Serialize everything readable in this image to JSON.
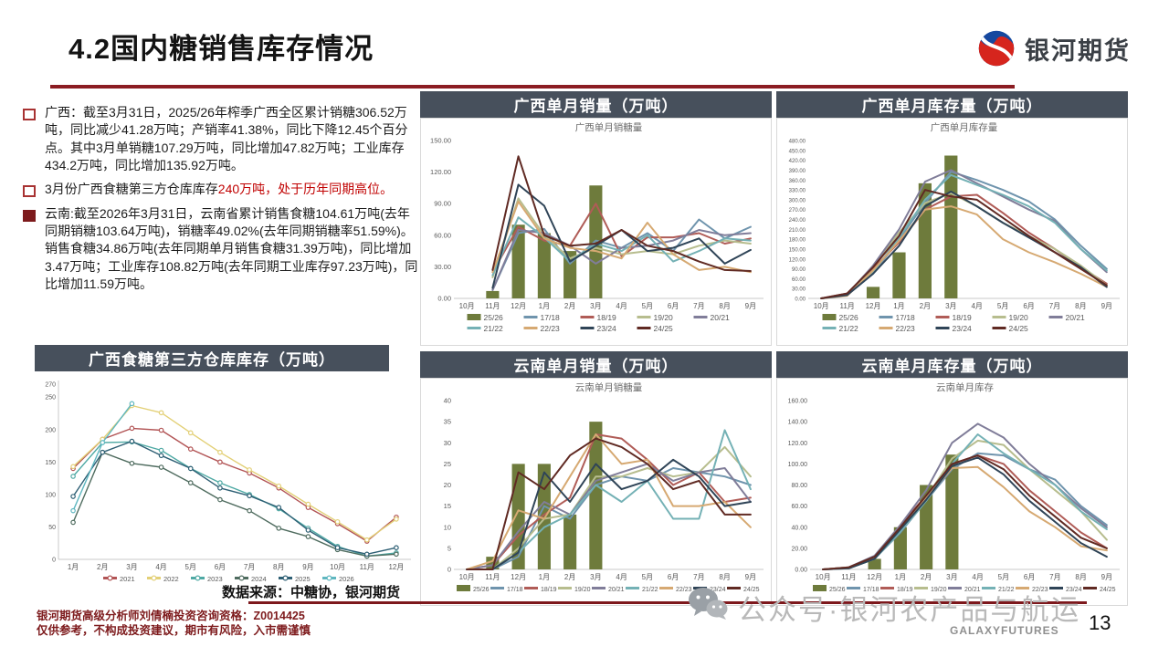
{
  "header": {
    "title": "4.2国内糖销售库存情况",
    "logo_text": "银河期货"
  },
  "colors": {
    "accent_red": "#8b1c22",
    "panel_header": "#47505c",
    "highlight_red": "#c00000",
    "season_colors": {
      "25/26": "#6e7b3c",
      "17/18": "#6f94ad",
      "18/19": "#b05c57",
      "19/20": "#b7bd8e",
      "20/21": "#807d99",
      "21/22": "#74b1b5",
      "22/23": "#d6a972",
      "23/24": "#2f4457",
      "24/25": "#602a23"
    },
    "year_colors": {
      "2021": "#b25455",
      "2022": "#e3d077",
      "2023": "#4fa9a4",
      "2024": "#4e6b5e",
      "2025": "#2e5f74",
      "2026": "#5fb7c0"
    }
  },
  "bullets": [
    {
      "marker": "hollow",
      "segments": [
        {
          "text": "广西：截至3月31日，2025/26年榨季广西全区累计销糖306.52万吨，同比减少41.28万吨；产销率41.38%，同比下降12.45个百分点。其中3月单销糖107.29万吨，同比增加47.82万吨；工业库存434.2万吨，同比增加135.92万吨。",
          "red": false
        }
      ]
    },
    {
      "marker": "hollow",
      "segments": [
        {
          "text": "3月份广西食糖第三方仓库库存",
          "red": false
        },
        {
          "text": "240万吨，处于历年同期高位。",
          "red": true
        }
      ]
    },
    {
      "marker": "solid",
      "segments": [
        {
          "text": "云南:截至2026年3月31日，云南省累计销售食糖104.61万吨(去年同期销糖103.64万吨)，销糖率49.02%(去年同期销糖率51.59%)。销售食糖34.86万吨(去年同期单月销售食糖31.39万吨)，同比增加3.47万吨；工业库存108.82万吨(去年同期工业库存97.23万吨)，同比增加11.59万吨。",
          "red": false
        }
      ]
    }
  ],
  "source_note": "数据来源：中糖协，银河期货",
  "footer": {
    "line1": "银河期货高级分析师刘倩楠投资咨询资格：Z0014425",
    "line2": "仅供参考，不构成投资建议，期市有风险，入市需谨慎"
  },
  "watermark": {
    "text": "公众号·银河农产品与航运",
    "brand": "GALAXYFUTURES",
    "page": "13"
  },
  "chart_data": [
    {
      "type": "combo-bar-line",
      "title": "广西单月销量（万吨）",
      "inner_title": "广西单月销糖量",
      "categories": [
        "10月",
        "11月",
        "12月",
        "1月",
        "2月",
        "3月",
        "4月",
        "5月",
        "6月",
        "7月",
        "8月",
        "9月"
      ],
      "ylim": [
        0,
        150
      ],
      "yticks": [
        0,
        30,
        60,
        90,
        120,
        150
      ],
      "ytick_decimals": 2,
      "legend_cols": 5,
      "series": [
        {
          "name": "25/26",
          "type": "bar",
          "color": "#6e7b3c",
          "values": [
            null,
            7,
            70,
            62,
            45,
            107.3,
            null,
            null,
            null,
            null,
            null,
            null
          ]
        },
        {
          "name": "17/18",
          "type": "line",
          "color": "#6f94ad",
          "values": [
            null,
            8,
            62,
            66,
            33,
            55,
            48,
            62,
            45,
            75,
            57,
            68
          ]
        },
        {
          "name": "18/19",
          "type": "line",
          "color": "#b05c57",
          "values": [
            null,
            25,
            68,
            55,
            50,
            90,
            40,
            58,
            58,
            62,
            52,
            57
          ]
        },
        {
          "name": "19/20",
          "type": "line",
          "color": "#b7bd8e",
          "values": [
            null,
            20,
            95,
            60,
            38,
            48,
            42,
            45,
            42,
            50,
            55,
            52
          ]
        },
        {
          "name": "20/21",
          "type": "line",
          "color": "#807d99",
          "values": [
            null,
            8,
            65,
            62,
            50,
            33,
            48,
            50,
            55,
            65,
            60,
            62
          ]
        },
        {
          "name": "21/22",
          "type": "line",
          "color": "#74b1b5",
          "values": [
            null,
            22,
            77,
            58,
            35,
            52,
            45,
            60,
            35,
            45,
            57,
            55
          ]
        },
        {
          "name": "22/23",
          "type": "line",
          "color": "#d6a972",
          "values": [
            null,
            25,
            92,
            57,
            48,
            45,
            38,
            72,
            42,
            27,
            30,
            25
          ]
        },
        {
          "name": "23/24",
          "type": "line",
          "color": "#2f4457",
          "values": [
            null,
            10,
            108,
            88,
            35,
            50,
            65,
            45,
            48,
            57,
            33,
            46
          ]
        },
        {
          "name": "24/25",
          "type": "line",
          "color": "#602a23",
          "values": [
            null,
            27,
            135,
            60,
            50,
            52,
            65,
            50,
            45,
            35,
            27,
            26
          ]
        }
      ]
    },
    {
      "type": "combo-bar-line",
      "title": "广西单月库存量（万吨）",
      "inner_title": "广西单月库存量",
      "categories": [
        "10月",
        "11月",
        "12月",
        "1月",
        "2月",
        "3月",
        "4月",
        "5月",
        "6月",
        "7月",
        "8月",
        "9月"
      ],
      "ylim": [
        0,
        480
      ],
      "yticks": [
        0,
        30,
        60,
        90,
        120,
        150,
        180,
        210,
        240,
        270,
        300,
        330,
        360,
        390,
        420,
        450,
        480
      ],
      "ytick_decimals": 2,
      "ytick_fs": 6,
      "margin_left": 34,
      "legend_cols": 5,
      "series": [
        {
          "name": "25/26",
          "type": "bar",
          "color": "#6e7b3c",
          "values": [
            null,
            null,
            35,
            140,
            350,
            434.2,
            null,
            null,
            null,
            null,
            null,
            null
          ]
        },
        {
          "name": "17/18",
          "type": "line",
          "color": "#6f94ad",
          "values": [
            0,
            10,
            75,
            180,
            290,
            385,
            360,
            330,
            295,
            240,
            160,
            90
          ]
        },
        {
          "name": "18/19",
          "type": "line",
          "color": "#b05c57",
          "values": [
            0,
            15,
            90,
            170,
            270,
            310,
            315,
            260,
            200,
            150,
            95,
            45
          ]
        },
        {
          "name": "19/20",
          "type": "line",
          "color": "#b7bd8e",
          "values": [
            0,
            10,
            95,
            200,
            290,
            320,
            280,
            230,
            190,
            150,
            100,
            40
          ]
        },
        {
          "name": "20/21",
          "type": "line",
          "color": "#807d99",
          "values": [
            0,
            12,
            100,
            210,
            355,
            390,
            350,
            310,
            270,
            235,
            150,
            80
          ]
        },
        {
          "name": "21/22",
          "type": "line",
          "color": "#74b1b5",
          "values": [
            0,
            10,
            80,
            185,
            300,
            375,
            345,
            315,
            280,
            230,
            150,
            85
          ]
        },
        {
          "name": "22/23",
          "type": "line",
          "color": "#d6a972",
          "values": [
            0,
            8,
            85,
            175,
            270,
            280,
            255,
            180,
            140,
            110,
            75,
            35
          ]
        },
        {
          "name": "23/24",
          "type": "line",
          "color": "#2f4457",
          "values": [
            0,
            10,
            75,
            160,
            280,
            325,
            280,
            230,
            185,
            140,
            95,
            35
          ]
        },
        {
          "name": "24/25",
          "type": "line",
          "color": "#602a23",
          "values": [
            0,
            15,
            95,
            190,
            330,
            310,
            300,
            245,
            190,
            140,
            90,
            40
          ]
        }
      ]
    },
    {
      "type": "combo-bar-line",
      "title": "云南单月销量（万吨）",
      "inner_title": "云南单月销糖量",
      "categories": [
        "10月",
        "11月",
        "12月",
        "1月",
        "2月",
        "3月",
        "4月",
        "5月",
        "6月",
        "7月",
        "8月",
        "9月"
      ],
      "ylim": [
        0,
        40
      ],
      "yticks": [
        0,
        5,
        10,
        15,
        20,
        25,
        30,
        35,
        40
      ],
      "ytick_decimals": 0,
      "legend_cols": 9,
      "legend_item_w": 37,
      "legend_fs": 7,
      "series": [
        {
          "name": "25/26",
          "type": "bar",
          "color": "#6e7b3c",
          "values": [
            null,
            3,
            25,
            25,
            13,
            35,
            null,
            null,
            null,
            null,
            null,
            null
          ]
        },
        {
          "name": "17/18",
          "type": "line",
          "color": "#6f94ad",
          "values": [
            0,
            0,
            3,
            15,
            12,
            20,
            22,
            21,
            24,
            23,
            22,
            20
          ]
        },
        {
          "name": "18/19",
          "type": "line",
          "color": "#b05c57",
          "values": [
            0,
            1,
            8,
            13,
            17,
            32,
            31,
            26,
            20,
            23,
            16,
            17
          ]
        },
        {
          "name": "19/20",
          "type": "line",
          "color": "#b7bd8e",
          "values": [
            0,
            0,
            5,
            12,
            13,
            22,
            22,
            24,
            22,
            23,
            29,
            22
          ]
        },
        {
          "name": "20/21",
          "type": "line",
          "color": "#807d99",
          "values": [
            0,
            1,
            9,
            16,
            13,
            21,
            23,
            25,
            21,
            23,
            24,
            16
          ]
        },
        {
          "name": "21/22",
          "type": "line",
          "color": "#74b1b5",
          "values": [
            0,
            0,
            4,
            10,
            13,
            20,
            16,
            21,
            12,
            12,
            33,
            19
          ]
        },
        {
          "name": "22/23",
          "type": "line",
          "color": "#d6a972",
          "values": [
            0,
            2,
            14,
            12,
            22,
            32,
            25,
            26,
            15,
            15,
            16,
            10
          ]
        },
        {
          "name": "23/24",
          "type": "line",
          "color": "#2f4457",
          "values": [
            0,
            0,
            4,
            23,
            16,
            25,
            19,
            21,
            26,
            22,
            15,
            16
          ]
        },
        {
          "name": "24/25",
          "type": "line",
          "color": "#602a23",
          "values": [
            0,
            0,
            23,
            19,
            27,
            31,
            29,
            25,
            19,
            21,
            13,
            13
          ]
        }
      ]
    },
    {
      "type": "combo-bar-line",
      "title": "云南单月库存量（万吨）",
      "inner_title": "云南单月库存",
      "categories": [
        "10月",
        "11月",
        "12月",
        "1月",
        "2月",
        "3月",
        "4月",
        "5月",
        "6月",
        "7月",
        "8月",
        "9月"
      ],
      "ylim": [
        0,
        160
      ],
      "yticks": [
        0,
        20,
        40,
        60,
        80,
        100,
        120,
        140,
        160
      ],
      "ytick_decimals": 2,
      "ytick_fs": 7,
      "legend_cols": 9,
      "legend_item_w": 37,
      "legend_fs": 7,
      "series": [
        {
          "name": "25/26",
          "type": "bar",
          "color": "#6e7b3c",
          "values": [
            null,
            null,
            10,
            40,
            80,
            108.8,
            null,
            null,
            null,
            null,
            null,
            null
          ]
        },
        {
          "name": "17/18",
          "type": "line",
          "color": "#6f94ad",
          "values": [
            0,
            1,
            10,
            35,
            65,
            95,
            110,
            108,
            95,
            85,
            60,
            42
          ]
        },
        {
          "name": "18/19",
          "type": "line",
          "color": "#b05c57",
          "values": [
            0,
            2,
            12,
            42,
            70,
            100,
            108,
            100,
            75,
            55,
            35,
            20
          ]
        },
        {
          "name": "19/20",
          "type": "line",
          "color": "#b7bd8e",
          "values": [
            0,
            1,
            10,
            38,
            68,
            105,
            122,
            118,
            95,
            75,
            55,
            28
          ]
        },
        {
          "name": "20/21",
          "type": "line",
          "color": "#807d99",
          "values": [
            0,
            2,
            13,
            42,
            75,
            120,
            138,
            125,
            100,
            80,
            58,
            40
          ]
        },
        {
          "name": "21/22",
          "type": "line",
          "color": "#74b1b5",
          "values": [
            0,
            1,
            10,
            36,
            65,
            100,
            128,
            110,
            95,
            80,
            55,
            38
          ]
        },
        {
          "name": "22/23",
          "type": "line",
          "color": "#d6a972",
          "values": [
            0,
            2,
            11,
            40,
            68,
            96,
            97,
            78,
            55,
            40,
            22,
            18
          ]
        },
        {
          "name": "23/24",
          "type": "line",
          "color": "#2f4457",
          "values": [
            0,
            1,
            10,
            38,
            66,
            98,
            106,
            90,
            65,
            45,
            25,
            12
          ]
        },
        {
          "name": "24/25",
          "type": "line",
          "color": "#602a23",
          "values": [
            0,
            2,
            12,
            40,
            70,
            100,
            108,
            95,
            70,
            50,
            30,
            20
          ]
        }
      ]
    },
    {
      "type": "line",
      "title": "广西食糖第三方仓库库存（万吨）",
      "inner_title": "",
      "categories": [
        "1月",
        "2月",
        "3月",
        "4月",
        "5月",
        "6月",
        "7月",
        "8月",
        "9月",
        "10月",
        "11月",
        "12月"
      ],
      "ylim": [
        0,
        270
      ],
      "yticks": [
        0,
        50,
        100,
        150,
        200,
        250,
        270
      ],
      "ytick_decimals": 0,
      "ytick_fs": 7,
      "margin_left": 26,
      "left_axis": true,
      "markers": true,
      "line_w": 1.4,
      "legend_cols": 6,
      "legend_item_w": 48,
      "legend_fs": 7.5,
      "series": [
        {
          "name": "2021",
          "type": "line",
          "color": "#b25455",
          "values": [
            140,
            185,
            202,
            199,
            170,
            150,
            133,
            110,
            80,
            55,
            28,
            65
          ]
        },
        {
          "name": "2022",
          "type": "line",
          "color": "#e3d077",
          "values": [
            143,
            185,
            237,
            226,
            195,
            165,
            138,
            113,
            85,
            58,
            30,
            62
          ]
        },
        {
          "name": "2023",
          "type": "line",
          "color": "#4fa9a4",
          "values": [
            128,
            180,
            181,
            168,
            140,
            118,
            100,
            78,
            48,
            20,
            5,
            10
          ]
        },
        {
          "name": "2024",
          "type": "line",
          "color": "#4e6b5e",
          "values": [
            57,
            165,
            148,
            142,
            118,
            92,
            75,
            48,
            35,
            15,
            5,
            8
          ]
        },
        {
          "name": "2025",
          "type": "line",
          "color": "#2e5f74",
          "values": [
            97,
            165,
            182,
            160,
            140,
            110,
            98,
            80,
            45,
            18,
            8,
            18
          ]
        },
        {
          "name": "2026",
          "type": "line",
          "color": "#5fb7c0",
          "values": [
            75,
            180,
            240,
            null,
            null,
            null,
            null,
            null,
            null,
            null,
            null,
            null
          ]
        }
      ]
    }
  ]
}
